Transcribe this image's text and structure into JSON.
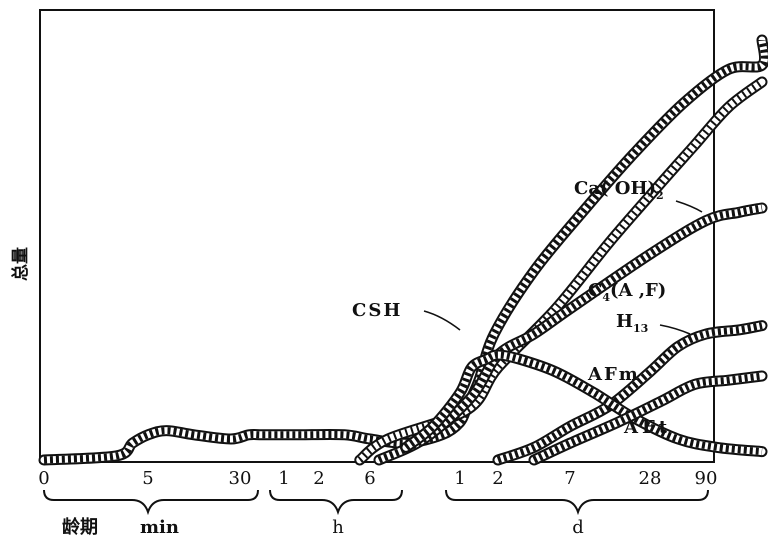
{
  "chart_data": {
    "type": "line",
    "title": "",
    "ylabel": "总量",
    "xlabel": "龄期",
    "grid": false,
    "ylim": [
      0,
      100
    ],
    "x_ticks": [
      "0",
      "5",
      "30",
      "1",
      "2",
      "6",
      "1",
      "2",
      "7",
      "28",
      "90"
    ],
    "x_units": [
      {
        "label": "min",
        "ticks": [
          "0",
          "5",
          "30"
        ]
      },
      {
        "label": "h",
        "ticks": [
          "1",
          "2",
          "6"
        ]
      },
      {
        "label": "d",
        "ticks": [
          "1",
          "2",
          "7",
          "28",
          "90"
        ]
      }
    ],
    "series": [
      {
        "name": "Ca(OH)2",
        "points": [
          [
            0.0,
            0
          ],
          [
            0.7,
            1
          ],
          [
            0.85,
            4
          ],
          [
            1.0,
            6
          ],
          [
            1.2,
            7
          ],
          [
            1.5,
            6
          ],
          [
            1.9,
            5
          ],
          [
            2.2,
            6
          ],
          [
            2.5,
            6
          ],
          [
            3.0,
            6
          ],
          [
            3.2,
            6
          ],
          [
            3.5,
            6
          ],
          [
            4.5,
            6
          ],
          [
            5.0,
            5
          ],
          [
            5.4,
            4
          ],
          [
            5.8,
            6
          ],
          [
            6.0,
            9
          ],
          [
            6.2,
            13
          ],
          [
            6.5,
            19
          ],
          [
            6.9,
            30
          ],
          [
            7.5,
            45
          ],
          [
            8.2,
            60
          ],
          [
            8.8,
            73
          ],
          [
            9.6,
            85
          ],
          [
            10.4,
            93
          ],
          [
            11.0,
            94
          ],
          [
            11.0,
            100
          ]
        ]
      },
      {
        "name": "CSH",
        "points": [
          [
            4.8,
            0
          ],
          [
            5.2,
            5
          ],
          [
            6.2,
            12
          ],
          [
            7.0,
            22
          ],
          [
            7.8,
            36
          ],
          [
            8.5,
            52
          ],
          [
            9.2,
            66
          ],
          [
            9.8,
            75
          ],
          [
            10.4,
            84
          ],
          [
            11.0,
            90
          ]
        ]
      },
      {
        "name": "C4(A,F)H13",
        "points": [
          [
            5.1,
            0
          ],
          [
            5.6,
            5
          ],
          [
            6.3,
            15
          ],
          [
            7.0,
            25
          ],
          [
            7.5,
            30
          ],
          [
            8.0,
            36
          ],
          [
            9.0,
            49
          ],
          [
            10.0,
            57
          ],
          [
            10.6,
            59
          ],
          [
            11.0,
            60
          ]
        ]
      },
      {
        "name": "AFm",
        "points": [
          [
            7.0,
            0
          ],
          [
            7.5,
            3
          ],
          [
            8.0,
            8
          ],
          [
            8.5,
            13
          ],
          [
            9.0,
            21
          ],
          [
            9.5,
            27
          ],
          [
            10.0,
            30
          ],
          [
            10.6,
            31
          ],
          [
            11.0,
            32
          ]
        ]
      },
      {
        "name": "AFt",
        "points": [
          [
            5.4,
            3
          ],
          [
            5.7,
            8
          ],
          [
            6.0,
            16
          ],
          [
            6.3,
            22
          ],
          [
            6.7,
            24
          ],
          [
            7.0,
            25
          ],
          [
            7.3,
            24
          ],
          [
            7.8,
            21
          ],
          [
            8.3,
            16
          ],
          [
            8.8,
            10
          ],
          [
            9.5,
            5
          ],
          [
            10.2,
            3
          ],
          [
            11.0,
            2
          ]
        ]
      },
      {
        "name": "",
        "points": [
          [
            7.5,
            0
          ],
          [
            8.0,
            4
          ],
          [
            8.6,
            9
          ],
          [
            9.2,
            14
          ],
          [
            9.8,
            18
          ],
          [
            10.4,
            19
          ],
          [
            11.0,
            20
          ]
        ]
      }
    ],
    "annotations": [
      {
        "text": "CSH",
        "target": "CSH"
      },
      {
        "text": "Ca( OH)",
        "sub": "2",
        "target": "Ca(OH)2"
      },
      {
        "text": "C",
        "sub": "4",
        "text2": "(A ,F)",
        "target": "C4(A,F)H13"
      },
      {
        "text": "H",
        "sub": "13",
        "target": "C4(A,F)H13"
      },
      {
        "text": "AFm",
        "target": "AFm"
      },
      {
        "text": "AFt",
        "target": "AFt"
      }
    ]
  }
}
